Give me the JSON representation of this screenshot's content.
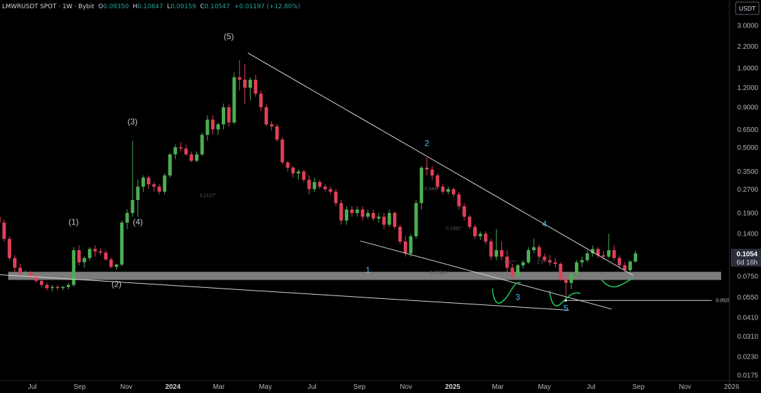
{
  "header": {
    "symbol": "LMWRUSDT SPOT · 1W · Bybit",
    "open_label": "O",
    "open": "0.09350",
    "high_label": "H",
    "high": "0.10847",
    "low_label": "L",
    "low": "0.09159",
    "close_label": "C",
    "close": "0.10547",
    "change": "+0.01197 (+12.80%)"
  },
  "currency_button": "USDT",
  "price_badge": {
    "price": "0.1054",
    "countdown": "6d 16h"
  },
  "colors": {
    "up": "#4caf50",
    "down": "#e0405a",
    "zone": "#8a8a8a",
    "trendline": "#d9d9d9",
    "wave_count": "#4fc3f7",
    "annotation": "#22c55e"
  },
  "chart_data": {
    "type": "candlestick",
    "scale": "log",
    "y_ticks": [
      "3.0000",
      "2.2000",
      "1.6000",
      "1.2000",
      "0.9000",
      "0.6500",
      "0.5000",
      "0.3500",
      "0.2700",
      "0.1900",
      "0.1400",
      "0.0750",
      "0.0550",
      "0.0410",
      "0.0310",
      "0.0230",
      "0.0175"
    ],
    "x_ticks": [
      {
        "label": "Jul",
        "date": "2023-07-01"
      },
      {
        "label": "Sep",
        "date": "2023-09-01"
      },
      {
        "label": "Nov",
        "date": "2023-11-01"
      },
      {
        "label": "2024",
        "date": "2024-01-01",
        "bold": true
      },
      {
        "label": "Mar",
        "date": "2024-03-01"
      },
      {
        "label": "May",
        "date": "2024-05-01"
      },
      {
        "label": "Jul",
        "date": "2024-07-01"
      },
      {
        "label": "Sep",
        "date": "2024-09-01"
      },
      {
        "label": "Nov",
        "date": "2024-11-01"
      },
      {
        "label": "2025",
        "date": "2025-01-01",
        "bold": true
      },
      {
        "label": "Mar",
        "date": "2025-03-01"
      },
      {
        "label": "May",
        "date": "2025-05-01"
      },
      {
        "label": "Jul",
        "date": "2025-07-01"
      },
      {
        "label": "Sep",
        "date": "2025-09-01"
      },
      {
        "label": "Nov",
        "date": "2025-11-01"
      },
      {
        "label": "2026",
        "date": "2026-01-01"
      }
    ],
    "support_zone": [
      0.071,
      0.08
    ],
    "candles": [
      {
        "date": "2023-05-15",
        "o": 0.18,
        "h": 0.21,
        "l": 0.16,
        "c": 0.165
      },
      {
        "date": "2023-05-22",
        "o": 0.165,
        "h": 0.172,
        "l": 0.125,
        "c": 0.13
      },
      {
        "date": "2023-05-29",
        "o": 0.13,
        "h": 0.135,
        "l": 0.095,
        "c": 0.098
      },
      {
        "date": "2023-06-05",
        "o": 0.098,
        "h": 0.102,
        "l": 0.08,
        "c": 0.085
      },
      {
        "date": "2023-06-12",
        "o": 0.085,
        "h": 0.09,
        "l": 0.076,
        "c": 0.078
      },
      {
        "date": "2023-06-19",
        "o": 0.078,
        "h": 0.082,
        "l": 0.073,
        "c": 0.079
      },
      {
        "date": "2023-06-26",
        "o": 0.079,
        "h": 0.081,
        "l": 0.072,
        "c": 0.074
      },
      {
        "date": "2023-07-03",
        "o": 0.074,
        "h": 0.077,
        "l": 0.068,
        "c": 0.07
      },
      {
        "date": "2023-07-10",
        "o": 0.07,
        "h": 0.073,
        "l": 0.064,
        "c": 0.066
      },
      {
        "date": "2023-07-17",
        "o": 0.066,
        "h": 0.068,
        "l": 0.061,
        "c": 0.063
      },
      {
        "date": "2023-07-24",
        "o": 0.063,
        "h": 0.066,
        "l": 0.06,
        "c": 0.064
      },
      {
        "date": "2023-07-31",
        "o": 0.064,
        "h": 0.066,
        "l": 0.061,
        "c": 0.063
      },
      {
        "date": "2023-08-07",
        "o": 0.063,
        "h": 0.065,
        "l": 0.061,
        "c": 0.064
      },
      {
        "date": "2023-08-14",
        "o": 0.064,
        "h": 0.068,
        "l": 0.062,
        "c": 0.066
      },
      {
        "date": "2023-08-21",
        "o": 0.066,
        "h": 0.115,
        "l": 0.064,
        "c": 0.11
      },
      {
        "date": "2023-08-28",
        "o": 0.11,
        "h": 0.118,
        "l": 0.088,
        "c": 0.092
      },
      {
        "date": "2023-09-04",
        "o": 0.092,
        "h": 0.1,
        "l": 0.085,
        "c": 0.098
      },
      {
        "date": "2023-09-11",
        "o": 0.098,
        "h": 0.115,
        "l": 0.094,
        "c": 0.112
      },
      {
        "date": "2023-09-18",
        "o": 0.112,
        "h": 0.118,
        "l": 0.1,
        "c": 0.108
      },
      {
        "date": "2023-09-25",
        "o": 0.108,
        "h": 0.113,
        "l": 0.102,
        "c": 0.106
      },
      {
        "date": "2023-10-02",
        "o": 0.106,
        "h": 0.11,
        "l": 0.094,
        "c": 0.096
      },
      {
        "date": "2023-10-09",
        "o": 0.096,
        "h": 0.099,
        "l": 0.084,
        "c": 0.086
      },
      {
        "date": "2023-10-16",
        "o": 0.086,
        "h": 0.09,
        "l": 0.082,
        "c": 0.089
      },
      {
        "date": "2023-10-23",
        "o": 0.089,
        "h": 0.17,
        "l": 0.087,
        "c": 0.165
      },
      {
        "date": "2023-10-30",
        "o": 0.165,
        "h": 0.2,
        "l": 0.15,
        "c": 0.19
      },
      {
        "date": "2023-11-06",
        "o": 0.19,
        "h": 0.55,
        "l": 0.18,
        "c": 0.23
      },
      {
        "date": "2023-11-13",
        "o": 0.23,
        "h": 0.31,
        "l": 0.18,
        "c": 0.28
      },
      {
        "date": "2023-11-20",
        "o": 0.28,
        "h": 0.33,
        "l": 0.26,
        "c": 0.32
      },
      {
        "date": "2023-11-27",
        "o": 0.32,
        "h": 0.33,
        "l": 0.27,
        "c": 0.29
      },
      {
        "date": "2023-12-04",
        "o": 0.29,
        "h": 0.3,
        "l": 0.26,
        "c": 0.28
      },
      {
        "date": "2023-12-11",
        "o": 0.28,
        "h": 0.29,
        "l": 0.25,
        "c": 0.26
      },
      {
        "date": "2023-12-18",
        "o": 0.26,
        "h": 0.34,
        "l": 0.25,
        "c": 0.33
      },
      {
        "date": "2023-12-25",
        "o": 0.33,
        "h": 0.46,
        "l": 0.32,
        "c": 0.45
      },
      {
        "date": "2024-01-01",
        "o": 0.45,
        "h": 0.52,
        "l": 0.42,
        "c": 0.5
      },
      {
        "date": "2024-01-08",
        "o": 0.5,
        "h": 0.54,
        "l": 0.47,
        "c": 0.49
      },
      {
        "date": "2024-01-15",
        "o": 0.49,
        "h": 0.52,
        "l": 0.44,
        "c": 0.45
      },
      {
        "date": "2024-01-22",
        "o": 0.45,
        "h": 0.47,
        "l": 0.4,
        "c": 0.41
      },
      {
        "date": "2024-01-29",
        "o": 0.41,
        "h": 0.47,
        "l": 0.4,
        "c": 0.45
      },
      {
        "date": "2024-02-05",
        "o": 0.45,
        "h": 0.62,
        "l": 0.44,
        "c": 0.6
      },
      {
        "date": "2024-02-12",
        "o": 0.6,
        "h": 0.8,
        "l": 0.55,
        "c": 0.75
      },
      {
        "date": "2024-02-19",
        "o": 0.75,
        "h": 0.8,
        "l": 0.6,
        "c": 0.65
      },
      {
        "date": "2024-02-26",
        "o": 0.65,
        "h": 0.72,
        "l": 0.6,
        "c": 0.7
      },
      {
        "date": "2024-03-04",
        "o": 0.7,
        "h": 0.95,
        "l": 0.65,
        "c": 0.9
      },
      {
        "date": "2024-03-11",
        "o": 0.9,
        "h": 0.94,
        "l": 0.68,
        "c": 0.72
      },
      {
        "date": "2024-03-18",
        "o": 0.72,
        "h": 1.5,
        "l": 0.7,
        "c": 1.4
      },
      {
        "date": "2024-03-25",
        "o": 1.4,
        "h": 1.8,
        "l": 1.15,
        "c": 1.35
      },
      {
        "date": "2024-04-01",
        "o": 1.35,
        "h": 1.7,
        "l": 0.95,
        "c": 1.2
      },
      {
        "date": "2024-04-08",
        "o": 1.2,
        "h": 1.4,
        "l": 1.0,
        "c": 1.35
      },
      {
        "date": "2024-04-15",
        "o": 1.35,
        "h": 1.45,
        "l": 1.05,
        "c": 1.1
      },
      {
        "date": "2024-04-22",
        "o": 1.1,
        "h": 1.15,
        "l": 0.85,
        "c": 0.9
      },
      {
        "date": "2024-04-29",
        "o": 0.9,
        "h": 0.94,
        "l": 0.68,
        "c": 0.7
      },
      {
        "date": "2024-05-06",
        "o": 0.7,
        "h": 0.73,
        "l": 0.64,
        "c": 0.68
      },
      {
        "date": "2024-05-13",
        "o": 0.68,
        "h": 0.7,
        "l": 0.54,
        "c": 0.56
      },
      {
        "date": "2024-05-20",
        "o": 0.56,
        "h": 0.58,
        "l": 0.39,
        "c": 0.4
      },
      {
        "date": "2024-05-27",
        "o": 0.4,
        "h": 0.41,
        "l": 0.35,
        "c": 0.37
      },
      {
        "date": "2024-06-03",
        "o": 0.37,
        "h": 0.38,
        "l": 0.32,
        "c": 0.34
      },
      {
        "date": "2024-06-10",
        "o": 0.34,
        "h": 0.36,
        "l": 0.31,
        "c": 0.35
      },
      {
        "date": "2024-06-17",
        "o": 0.35,
        "h": 0.36,
        "l": 0.3,
        "c": 0.31
      },
      {
        "date": "2024-06-24",
        "o": 0.31,
        "h": 0.33,
        "l": 0.25,
        "c": 0.27
      },
      {
        "date": "2024-07-01",
        "o": 0.27,
        "h": 0.32,
        "l": 0.26,
        "c": 0.3
      },
      {
        "date": "2024-07-08",
        "o": 0.3,
        "h": 0.31,
        "l": 0.27,
        "c": 0.28
      },
      {
        "date": "2024-07-15",
        "o": 0.28,
        "h": 0.29,
        "l": 0.26,
        "c": 0.27
      },
      {
        "date": "2024-07-22",
        "o": 0.27,
        "h": 0.28,
        "l": 0.25,
        "c": 0.26
      },
      {
        "date": "2024-07-29",
        "o": 0.26,
        "h": 0.27,
        "l": 0.21,
        "c": 0.22
      },
      {
        "date": "2024-08-05",
        "o": 0.22,
        "h": 0.23,
        "l": 0.16,
        "c": 0.17
      },
      {
        "date": "2024-08-12",
        "o": 0.17,
        "h": 0.21,
        "l": 0.16,
        "c": 0.2
      },
      {
        "date": "2024-08-19",
        "o": 0.2,
        "h": 0.21,
        "l": 0.18,
        "c": 0.19
      },
      {
        "date": "2024-08-26",
        "o": 0.19,
        "h": 0.21,
        "l": 0.18,
        "c": 0.2
      },
      {
        "date": "2024-09-02",
        "o": 0.2,
        "h": 0.21,
        "l": 0.17,
        "c": 0.18
      },
      {
        "date": "2024-09-09",
        "o": 0.18,
        "h": 0.2,
        "l": 0.175,
        "c": 0.19
      },
      {
        "date": "2024-09-16",
        "o": 0.19,
        "h": 0.2,
        "l": 0.17,
        "c": 0.175
      },
      {
        "date": "2024-09-23",
        "o": 0.175,
        "h": 0.19,
        "l": 0.165,
        "c": 0.18
      },
      {
        "date": "2024-09-30",
        "o": 0.18,
        "h": 0.19,
        "l": 0.15,
        "c": 0.16
      },
      {
        "date": "2024-10-07",
        "o": 0.16,
        "h": 0.2,
        "l": 0.155,
        "c": 0.19
      },
      {
        "date": "2024-10-14",
        "o": 0.19,
        "h": 0.195,
        "l": 0.15,
        "c": 0.155
      },
      {
        "date": "2024-10-21",
        "o": 0.155,
        "h": 0.16,
        "l": 0.12,
        "c": 0.125
      },
      {
        "date": "2024-10-28",
        "o": 0.125,
        "h": 0.135,
        "l": 0.1,
        "c": 0.105
      },
      {
        "date": "2024-11-04",
        "o": 0.105,
        "h": 0.14,
        "l": 0.1,
        "c": 0.135
      },
      {
        "date": "2024-11-11",
        "o": 0.135,
        "h": 0.23,
        "l": 0.13,
        "c": 0.22
      },
      {
        "date": "2024-11-18",
        "o": 0.22,
        "h": 0.38,
        "l": 0.2,
        "c": 0.37
      },
      {
        "date": "2024-11-25",
        "o": 0.37,
        "h": 0.43,
        "l": 0.33,
        "c": 0.36
      },
      {
        "date": "2024-12-02",
        "o": 0.36,
        "h": 0.38,
        "l": 0.31,
        "c": 0.33
      },
      {
        "date": "2024-12-09",
        "o": 0.33,
        "h": 0.34,
        "l": 0.27,
        "c": 0.28
      },
      {
        "date": "2024-12-16",
        "o": 0.28,
        "h": 0.29,
        "l": 0.25,
        "c": 0.26
      },
      {
        "date": "2024-12-23",
        "o": 0.26,
        "h": 0.28,
        "l": 0.25,
        "c": 0.27
      },
      {
        "date": "2024-12-30",
        "o": 0.27,
        "h": 0.275,
        "l": 0.24,
        "c": 0.25
      },
      {
        "date": "2025-01-06",
        "o": 0.25,
        "h": 0.26,
        "l": 0.2,
        "c": 0.21
      },
      {
        "date": "2025-01-13",
        "o": 0.21,
        "h": 0.22,
        "l": 0.17,
        "c": 0.18
      },
      {
        "date": "2025-01-20",
        "o": 0.18,
        "h": 0.185,
        "l": 0.15,
        "c": 0.155
      },
      {
        "date": "2025-01-27",
        "o": 0.155,
        "h": 0.16,
        "l": 0.13,
        "c": 0.135
      },
      {
        "date": "2025-02-03",
        "o": 0.135,
        "h": 0.145,
        "l": 0.128,
        "c": 0.14
      },
      {
        "date": "2025-02-10",
        "o": 0.14,
        "h": 0.145,
        "l": 0.12,
        "c": 0.125
      },
      {
        "date": "2025-02-17",
        "o": 0.125,
        "h": 0.13,
        "l": 0.095,
        "c": 0.1
      },
      {
        "date": "2025-02-24",
        "o": 0.1,
        "h": 0.15,
        "l": 0.095,
        "c": 0.11
      },
      {
        "date": "2025-03-03",
        "o": 0.11,
        "h": 0.125,
        "l": 0.095,
        "c": 0.1
      },
      {
        "date": "2025-03-10",
        "o": 0.1,
        "h": 0.11,
        "l": 0.08,
        "c": 0.085
      },
      {
        "date": "2025-03-17",
        "o": 0.085,
        "h": 0.09,
        "l": 0.072,
        "c": 0.075
      },
      {
        "date": "2025-03-24",
        "o": 0.075,
        "h": 0.09,
        "l": 0.073,
        "c": 0.088
      },
      {
        "date": "2025-03-31",
        "o": 0.088,
        "h": 0.095,
        "l": 0.084,
        "c": 0.092
      },
      {
        "date": "2025-04-07",
        "o": 0.092,
        "h": 0.115,
        "l": 0.09,
        "c": 0.11
      },
      {
        "date": "2025-04-14",
        "o": 0.11,
        "h": 0.13,
        "l": 0.105,
        "c": 0.115
      },
      {
        "date": "2025-04-21",
        "o": 0.115,
        "h": 0.12,
        "l": 0.095,
        "c": 0.1
      },
      {
        "date": "2025-04-28",
        "o": 0.1,
        "h": 0.105,
        "l": 0.092,
        "c": 0.095
      },
      {
        "date": "2025-05-05",
        "o": 0.095,
        "h": 0.102,
        "l": 0.088,
        "c": 0.092
      },
      {
        "date": "2025-05-12",
        "o": 0.092,
        "h": 0.098,
        "l": 0.085,
        "c": 0.09
      },
      {
        "date": "2025-05-19",
        "o": 0.09,
        "h": 0.092,
        "l": 0.07,
        "c": 0.072
      },
      {
        "date": "2025-05-26",
        "o": 0.072,
        "h": 0.078,
        "l": 0.053,
        "c": 0.068
      },
      {
        "date": "2025-06-02",
        "o": 0.068,
        "h": 0.08,
        "l": 0.062,
        "c": 0.078
      },
      {
        "date": "2025-06-09",
        "o": 0.078,
        "h": 0.095,
        "l": 0.076,
        "c": 0.092
      },
      {
        "date": "2025-06-16",
        "o": 0.092,
        "h": 0.1,
        "l": 0.086,
        "c": 0.095
      },
      {
        "date": "2025-06-23",
        "o": 0.095,
        "h": 0.11,
        "l": 0.092,
        "c": 0.105
      },
      {
        "date": "2025-06-30",
        "o": 0.105,
        "h": 0.118,
        "l": 0.1,
        "c": 0.112
      },
      {
        "date": "2025-07-07",
        "o": 0.112,
        "h": 0.115,
        "l": 0.098,
        "c": 0.102
      },
      {
        "date": "2025-07-14",
        "o": 0.102,
        "h": 0.108,
        "l": 0.096,
        "c": 0.1
      },
      {
        "date": "2025-07-21",
        "o": 0.1,
        "h": 0.14,
        "l": 0.098,
        "c": 0.11
      },
      {
        "date": "2025-07-28",
        "o": 0.11,
        "h": 0.118,
        "l": 0.095,
        "c": 0.098
      },
      {
        "date": "2025-08-04",
        "o": 0.098,
        "h": 0.102,
        "l": 0.084,
        "c": 0.088
      },
      {
        "date": "2025-08-11",
        "o": 0.088,
        "h": 0.092,
        "l": 0.08,
        "c": 0.082
      },
      {
        "date": "2025-08-18",
        "o": 0.082,
        "h": 0.095,
        "l": 0.08,
        "c": 0.093
      },
      {
        "date": "2025-08-25",
        "o": 0.093,
        "h": 0.109,
        "l": 0.092,
        "c": 0.105
      }
    ],
    "trendlines": [
      {
        "from": {
          "date": "2024-04-08",
          "price": 2.0
        },
        "to": {
          "date": "2025-08-25",
          "price": 0.076
        }
      },
      {
        "from": {
          "date": "2024-09-02",
          "price": 0.126
        },
        "to": {
          "date": "2025-07-28",
          "price": 0.0462
        }
      },
      {
        "from": {
          "date": "2023-05-15",
          "price": 0.077
        },
        "to": {
          "date": "2025-06-02",
          "price": 0.0455
        }
      }
    ],
    "level_line": {
      "price": 0.05253,
      "label": "0.05253",
      "from": "2025-05-26",
      "to": "2025-12-06"
    },
    "wave_labels": [
      {
        "text": "(1)",
        "date": "2023-08-21",
        "price": 0.16,
        "style": "white"
      },
      {
        "text": "(2)",
        "date": "2023-10-16",
        "price": 0.064,
        "style": "white"
      },
      {
        "text": "(3)",
        "date": "2023-11-06",
        "price": 0.7,
        "style": "white"
      },
      {
        "text": "(4)",
        "date": "2023-11-13",
        "price": 0.16,
        "style": "white"
      },
      {
        "text": "(5)",
        "date": "2024-03-11",
        "price": 2.45,
        "style": "white"
      },
      {
        "text": "1",
        "date": "2024-09-09",
        "price": 0.079,
        "style": "cyan"
      },
      {
        "text": "2",
        "date": "2024-11-25",
        "price": 0.51,
        "style": "cyan"
      },
      {
        "text": "3",
        "date": "2025-03-24",
        "price": 0.053,
        "style": "cyan"
      },
      {
        "text": "4",
        "date": "2025-04-28",
        "price": 0.155,
        "style": "cyan"
      },
      {
        "text": "5",
        "date": "2025-05-26",
        "price": 0.045,
        "style": "cyan"
      }
    ],
    "faint_labels": [
      {
        "text": "0.2127°",
        "date": "2024-02-05",
        "price": 0.24
      },
      {
        "text": "0.3447",
        "date": "2024-11-25",
        "price": 0.265
      },
      {
        "text": "0.1481°",
        "date": "2024-12-23",
        "price": 0.148
      },
      {
        "text": "0.07360",
        "date": "2024-12-02",
        "price": 0.0775
      },
      {
        "text": "0.0°°°",
        "date": "2025-03-10",
        "price": 0.09
      },
      {
        "text": "0.0°°°",
        "date": "2025-04-21",
        "price": 0.09
      }
    ]
  }
}
